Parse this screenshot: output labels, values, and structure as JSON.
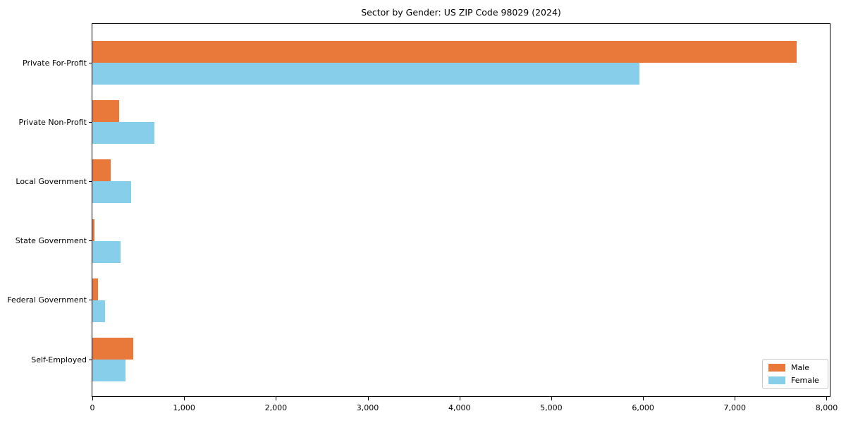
{
  "chart_data": {
    "type": "bar",
    "orientation": "horizontal",
    "title": "Sector by Gender: US ZIP Code 98029 (2024)",
    "categories": [
      "Private For-Profit",
      "Private Non-Profit",
      "Local Government",
      "State Government",
      "Federal Government",
      "Self-Employed"
    ],
    "series": [
      {
        "name": "Male",
        "color": "#e8793b",
        "values": [
          7675,
          290,
          200,
          25,
          65,
          445
        ]
      },
      {
        "name": "Female",
        "color": "#87ceeb",
        "values": [
          5960,
          675,
          420,
          305,
          140,
          360
        ]
      }
    ],
    "xlim": [
      0,
      8050
    ],
    "x_ticks": [
      0,
      1000,
      2000,
      3000,
      4000,
      5000,
      6000,
      7000,
      8000
    ],
    "x_tick_labels": [
      "0",
      "1,000",
      "2,000",
      "3,000",
      "4,000",
      "5,000",
      "6,000",
      "7,000",
      "8,000"
    ],
    "xlabel": "",
    "ylabel": "",
    "grid": false,
    "legend": {
      "position": "lower right"
    }
  }
}
